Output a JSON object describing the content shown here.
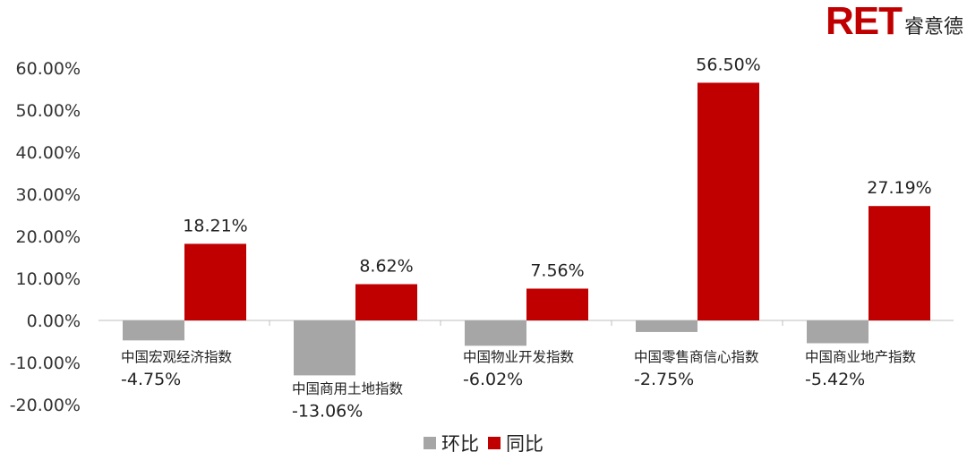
{
  "logo": {
    "mark": "RET",
    "text": "睿意德"
  },
  "chart_data": {
    "type": "bar",
    "categories": [
      "中国宏观经济指数",
      "中国商用土地指数",
      "中国物业开发指数",
      "中国零售商信心指数",
      "中国商业地产指数"
    ],
    "series": [
      {
        "name": "环比",
        "values": [
          -4.75,
          -13.06,
          -6.02,
          -2.75,
          -5.42
        ],
        "labels": [
          "-4.75%",
          "-13.06%",
          "-6.02%",
          "-2.75%",
          "-5.42%"
        ],
        "color": "#a6a6a6"
      },
      {
        "name": "同比",
        "values": [
          18.21,
          8.62,
          7.56,
          56.5,
          27.19
        ],
        "labels": [
          "18.21%",
          "8.62%",
          "7.56%",
          "56.50%",
          "27.19%"
        ],
        "color": "#c00000"
      }
    ],
    "ylim": [
      -20,
      60
    ],
    "yticks": [
      "-20.00%",
      "-10.00%",
      "0.00%",
      "10.00%",
      "20.00%",
      "30.00%",
      "40.00%",
      "50.00%",
      "60.00%"
    ],
    "grid": false,
    "legend_position": "bottom"
  }
}
